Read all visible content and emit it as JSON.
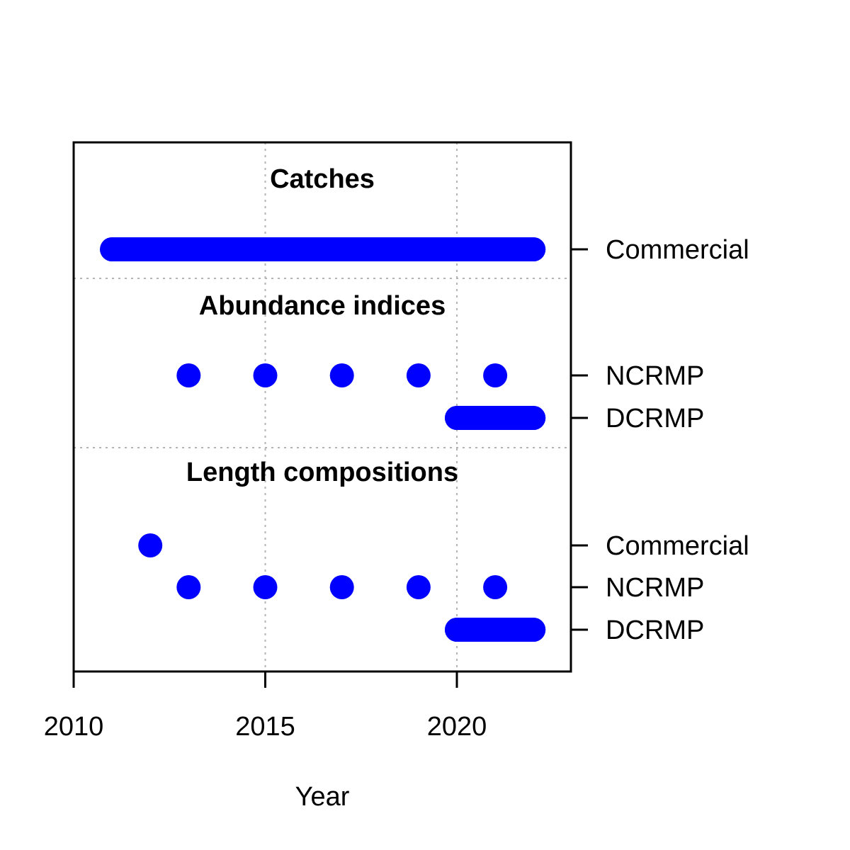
{
  "chart_data": {
    "type": "scatter",
    "xlabel": "Year",
    "xlim": [
      2010,
      2023
    ],
    "x_ticks": [
      2010,
      2015,
      2020
    ],
    "grid": true,
    "mark_color": "#0000ff",
    "groups": [
      {
        "title": "Catches",
        "series": [
          {
            "name": "Commercial",
            "years": [
              2011,
              2012,
              2013,
              2014,
              2015,
              2016,
              2017,
              2018,
              2019,
              2020,
              2021,
              2022
            ]
          }
        ]
      },
      {
        "title": "Abundance indices",
        "series": [
          {
            "name": "NCRMP",
            "years": [
              2013,
              2015,
              2017,
              2019,
              2021
            ]
          },
          {
            "name": "DCRMP",
            "years": [
              2020,
              2021,
              2022
            ]
          }
        ]
      },
      {
        "title": "Length compositions",
        "series": [
          {
            "name": "Commercial",
            "years": [
              2012
            ]
          },
          {
            "name": "NCRMP",
            "years": [
              2013,
              2015,
              2017,
              2019,
              2021
            ]
          },
          {
            "name": "DCRMP",
            "years": [
              2020,
              2021,
              2022
            ]
          }
        ]
      }
    ]
  }
}
